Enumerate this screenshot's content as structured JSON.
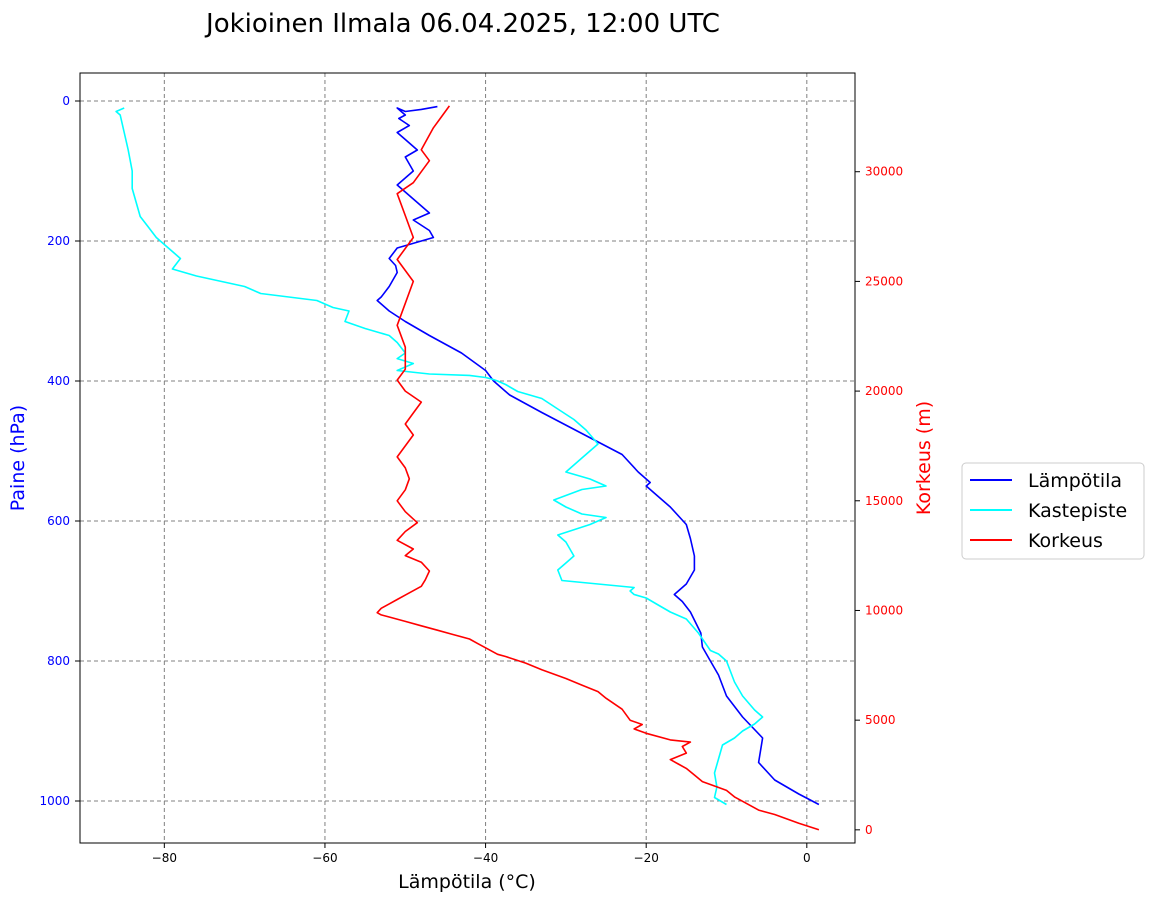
{
  "chart_data": {
    "type": "line",
    "title": "Jokioinen Ilmala 06.04.2025, 12:00 UTC",
    "xlabel": "Lämpötila (°C)",
    "ylabel_left": "Paine (hPa)",
    "ylabel_right": "Korkeus (m)",
    "xlim": [
      -90.5,
      6
    ],
    "ylim_left": [
      1060,
      -40
    ],
    "ylim_right": [
      -600,
      34500
    ],
    "x_ticks": [
      -80,
      -60,
      -40,
      -20,
      0
    ],
    "x_tick_labels": [
      "−80",
      "−60",
      "−40",
      "−20",
      "0"
    ],
    "y_left_ticks": [
      0,
      200,
      400,
      600,
      800,
      1000
    ],
    "y_left_tick_labels": [
      "0",
      "200",
      "400",
      "600",
      "800",
      "1000"
    ],
    "y_right_ticks": [
      0,
      5000,
      10000,
      15000,
      20000,
      25000,
      30000
    ],
    "y_right_tick_labels": [
      "0",
      "5000",
      "10000",
      "15000",
      "20000",
      "25000",
      "30000"
    ],
    "grid": true,
    "legend_position": "right",
    "colors": {
      "left_axis": "#0000ff",
      "right_axis": "#ff0000",
      "grid": "#808080"
    },
    "series": [
      {
        "name": "Lämpötila",
        "color": "#0000ff",
        "axis": "left",
        "x": [
          1.5,
          -1,
          -4,
          -6,
          -5.5,
          -8,
          -10,
          -11,
          -12,
          -13,
          -13.2,
          -14.5,
          -15.5,
          -16,
          -16.5,
          -15,
          -14,
          -14,
          -14.5,
          -15,
          -17,
          -19,
          -20,
          -19.5,
          -21,
          -23,
          -28,
          -33,
          -37,
          -39,
          -40,
          -43,
          -47,
          -50,
          -52,
          -53,
          -53.5,
          -53,
          -52,
          -51.5,
          -51,
          -51.2,
          -52,
          -51,
          -48,
          -46.5,
          -47,
          -49,
          -47,
          -49,
          -51,
          -49,
          -50,
          -48.5,
          -50,
          -51,
          -49.5,
          -50.8,
          -50,
          -50.5,
          -51,
          -50,
          -48,
          -46
        ],
        "y": [
          1005,
          990,
          970,
          945,
          910,
          880,
          850,
          820,
          800,
          780,
          760,
          730,
          715,
          710,
          705,
          690,
          670,
          650,
          625,
          605,
          580,
          560,
          550,
          545,
          530,
          505,
          475,
          445,
          420,
          400,
          385,
          360,
          335,
          315,
          300,
          290,
          285,
          280,
          265,
          255,
          245,
          235,
          225,
          210,
          200,
          195,
          185,
          170,
          160,
          140,
          120,
          100,
          80,
          70,
          55,
          45,
          35,
          25,
          20,
          15,
          10,
          15,
          12,
          8
        ]
      },
      {
        "name": "Kastepiste",
        "color": "#00ffff",
        "axis": "left",
        "x": [
          -10,
          -11.5,
          -11.2,
          -11.5,
          -11,
          -10.5,
          -9,
          -8,
          -6.5,
          -5.5,
          -6.5,
          -8,
          -9,
          -10,
          -11,
          -12,
          -13.5,
          -15,
          -17,
          -18.5,
          -20,
          -21.5,
          -22,
          -21.5,
          -26,
          -30.5,
          -31,
          -30,
          -29,
          -30,
          -31,
          -27,
          -25,
          -28,
          -30,
          -31.5,
          -28,
          -25,
          -27,
          -30,
          -28,
          -26,
          -27.5,
          -29,
          -31,
          -33,
          -36,
          -37.5,
          -38.5,
          -39,
          -40,
          -42,
          -47,
          -51,
          -49,
          -51,
          -50,
          -51,
          -52,
          -55,
          -57.5,
          -57,
          -59,
          -60,
          -61,
          -68,
          -70,
          -76,
          -79,
          -78,
          -79,
          -80,
          -81,
          -82,
          -83,
          -83.5,
          -84,
          -84,
          -84.5,
          -85,
          -85.5,
          -86,
          -85
        ],
        "y": [
          1005,
          995,
          980,
          960,
          940,
          920,
          910,
          900,
          890,
          880,
          870,
          850,
          830,
          800,
          790,
          785,
          760,
          740,
          730,
          720,
          710,
          705,
          700,
          695,
          690,
          685,
          670,
          660,
          650,
          630,
          620,
          605,
          595,
          590,
          580,
          570,
          555,
          550,
          540,
          530,
          510,
          490,
          470,
          455,
          440,
          425,
          415,
          405,
          400,
          398,
          395,
          392,
          390,
          385,
          375,
          368,
          360,
          345,
          335,
          325,
          315,
          300,
          295,
          290,
          285,
          275,
          265,
          250,
          240,
          225,
          215,
          205,
          195,
          180,
          165,
          145,
          125,
          100,
          70,
          45,
          20,
          15,
          10
        ]
      },
      {
        "name": "Korkeus",
        "color": "#ff0000",
        "axis": "right",
        "x": [
          1.5,
          -1,
          -4,
          -6,
          -7,
          -8,
          -9,
          -10,
          -11.5,
          -13,
          -14,
          -15,
          -16,
          -17,
          -15,
          -15.5,
          -14.5,
          -17,
          -20,
          -21.5,
          -20.5,
          -22,
          -23,
          -25,
          -26,
          -28,
          -30,
          -33,
          -35,
          -37.5,
          -38.5,
          -40,
          -41,
          -42,
          -44,
          -46,
          -48,
          -50,
          -52,
          -53,
          -53.5,
          -53,
          -52,
          -51,
          -50,
          -49,
          -48,
          -47.5,
          -47,
          -48,
          -50,
          -49,
          -51,
          -50,
          -48.5,
          -50,
          -51,
          -50,
          -49.5,
          -50,
          -51,
          -50,
          -49,
          -50,
          -49,
          -48,
          -50,
          -51,
          -50,
          -50,
          -51,
          -50,
          -49,
          -51,
          -49,
          -50,
          -51,
          -49,
          -48,
          -47,
          -48,
          -46.5,
          -45.5,
          -44.5
        ],
        "y": [
          0,
          300,
          700,
          900,
          1100,
          1300,
          1500,
          1800,
          2000,
          2200,
          2500,
          2800,
          3000,
          3200,
          3500,
          3800,
          4000,
          4100,
          4400,
          4600,
          4800,
          5000,
          5500,
          6000,
          6300,
          6600,
          6900,
          7300,
          7600,
          7900,
          8000,
          8300,
          8500,
          8700,
          8900,
          9100,
          9300,
          9500,
          9700,
          9800,
          9900,
          10100,
          10300,
          10500,
          10700,
          10900,
          11100,
          11400,
          11800,
          12200,
          12500,
          12800,
          13200,
          13600,
          14000,
          14500,
          15000,
          15500,
          16000,
          16500,
          17000,
          17500,
          18000,
          18500,
          19000,
          19500,
          20000,
          20500,
          21000,
          22000,
          23000,
          24000,
          25000,
          26000,
          27000,
          28000,
          29000,
          29500,
          30000,
          30500,
          31000,
          32000,
          32500,
          33000
        ]
      }
    ]
  }
}
